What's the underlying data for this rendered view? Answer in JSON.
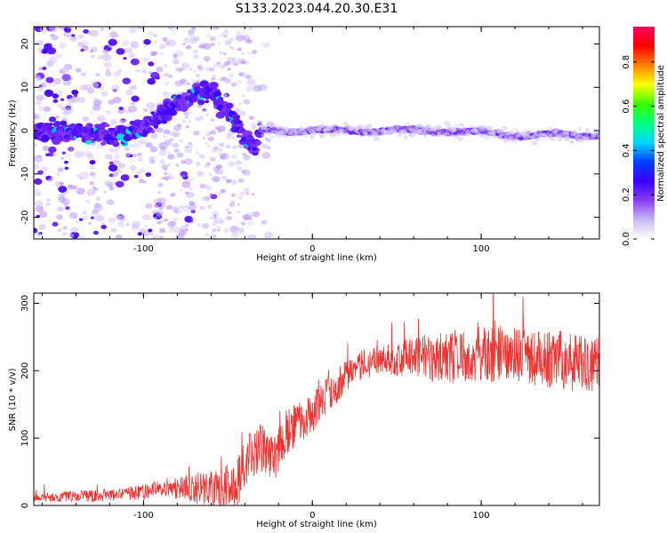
{
  "title": "S133.2023.044.20.30.E31",
  "chart_data": [
    {
      "type": "heatmap",
      "xlabel": "Height of straight line (km)",
      "ylabel": "Frequency (Hz)",
      "xlim": [
        -165,
        170
      ],
      "ylim": [
        -25,
        24
      ],
      "x_ticks": [
        -100,
        0,
        100
      ],
      "y_ticks": [
        -20,
        -10,
        0,
        10,
        20
      ],
      "colorbar": {
        "label": "Normalized spectral amplitude",
        "range": [
          0,
          0.96
        ],
        "ticks": [
          0.0,
          0.2,
          0.4,
          0.6,
          0.8
        ],
        "colormap": [
          "#ffffff",
          "#c9b8f2",
          "#8a3cf6",
          "#3a00ff",
          "#0040ff",
          "#00d8ff",
          "#00ff80",
          "#3cff00",
          "#ffff00",
          "#ff8000",
          "#ff0000",
          "#ff0060"
        ]
      },
      "ridge": [
        {
          "x": -165,
          "y": 0
        },
        {
          "x": -125,
          "y": -1
        },
        {
          "x": -110,
          "y": -1
        },
        {
          "x": -100,
          "y": 1
        },
        {
          "x": -85,
          "y": 5
        },
        {
          "x": -70,
          "y": 8
        },
        {
          "x": -58,
          "y": 9
        },
        {
          "x": -50,
          "y": 4
        },
        {
          "x": -42,
          "y": 0
        },
        {
          "x": -35,
          "y": -4
        },
        {
          "x": -30,
          "y": 0
        },
        {
          "x": -20,
          "y": 0
        },
        {
          "x": 0,
          "y": 0
        },
        {
          "x": 50,
          "y": 0
        },
        {
          "x": 80,
          "y": 0
        },
        {
          "x": 120,
          "y": -1
        },
        {
          "x": 170,
          "y": -1
        }
      ]
    },
    {
      "type": "line",
      "xlabel": "Height of straight line (km)",
      "ylabel": "SNR (10 * v/v)",
      "xlim": [
        -165,
        170
      ],
      "ylim": [
        0,
        315
      ],
      "x_ticks": [
        -100,
        0,
        100
      ],
      "y_ticks": [
        0,
        100,
        200,
        300
      ],
      "line_color": "#ee3333",
      "trend": [
        {
          "x": -165,
          "y": 12
        },
        {
          "x": -120,
          "y": 15
        },
        {
          "x": -100,
          "y": 20
        },
        {
          "x": -85,
          "y": 28
        },
        {
          "x": -70,
          "y": 25
        },
        {
          "x": -55,
          "y": 25
        },
        {
          "x": -45,
          "y": 30
        },
        {
          "x": -38,
          "y": 70
        },
        {
          "x": -30,
          "y": 85
        },
        {
          "x": -22,
          "y": 70
        },
        {
          "x": -15,
          "y": 110
        },
        {
          "x": -5,
          "y": 130
        },
        {
          "x": 5,
          "y": 150
        },
        {
          "x": 15,
          "y": 180
        },
        {
          "x": 25,
          "y": 205
        },
        {
          "x": 40,
          "y": 215
        },
        {
          "x": 60,
          "y": 220
        },
        {
          "x": 80,
          "y": 220
        },
        {
          "x": 100,
          "y": 225
        },
        {
          "x": 130,
          "y": 220
        },
        {
          "x": 170,
          "y": 210
        }
      ],
      "noise_amplitude": [
        {
          "x": -165,
          "y": 6
        },
        {
          "x": -90,
          "y": 12
        },
        {
          "x": -40,
          "y": 40
        },
        {
          "x": -20,
          "y": 35
        },
        {
          "x": 0,
          "y": 30
        },
        {
          "x": 40,
          "y": 20
        },
        {
          "x": 80,
          "y": 40
        },
        {
          "x": 170,
          "y": 45
        }
      ]
    }
  ]
}
